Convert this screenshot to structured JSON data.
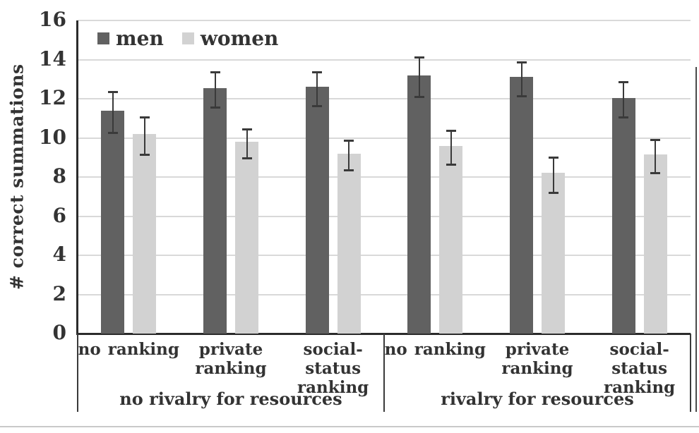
{
  "chart_data": {
    "type": "bar",
    "ylabel": "# correct summations",
    "ylim": [
      0,
      16
    ],
    "ytick_step": 2,
    "grid": true,
    "legend_position": "top-left-inside",
    "categories": [
      "no ranking",
      "private ranking",
      "social-status ranking",
      "no ranking",
      "private ranking",
      "social-status ranking"
    ],
    "categories_per_group": 3,
    "group_labels": [
      "no rivalry for resources",
      "rivalry for resources"
    ],
    "series": [
      {
        "name": "men",
        "color": "#616161",
        "values": [
          11.4,
          12.55,
          12.6,
          13.2,
          13.1,
          12.05
        ],
        "errors": [
          1.0,
          0.85,
          0.8,
          0.95,
          0.8,
          0.85
        ]
      },
      {
        "name": "women",
        "color": "#d2d2d2",
        "values": [
          10.2,
          9.8,
          9.2,
          9.6,
          8.2,
          9.15
        ],
        "errors": [
          0.9,
          0.7,
          0.7,
          0.8,
          0.85,
          0.8
        ]
      }
    ],
    "error_bar_color": "#3a3a3a",
    "gridline_color": "#d9d9d9",
    "axis_color": "#2b2b2b",
    "text_color": "#333333"
  }
}
